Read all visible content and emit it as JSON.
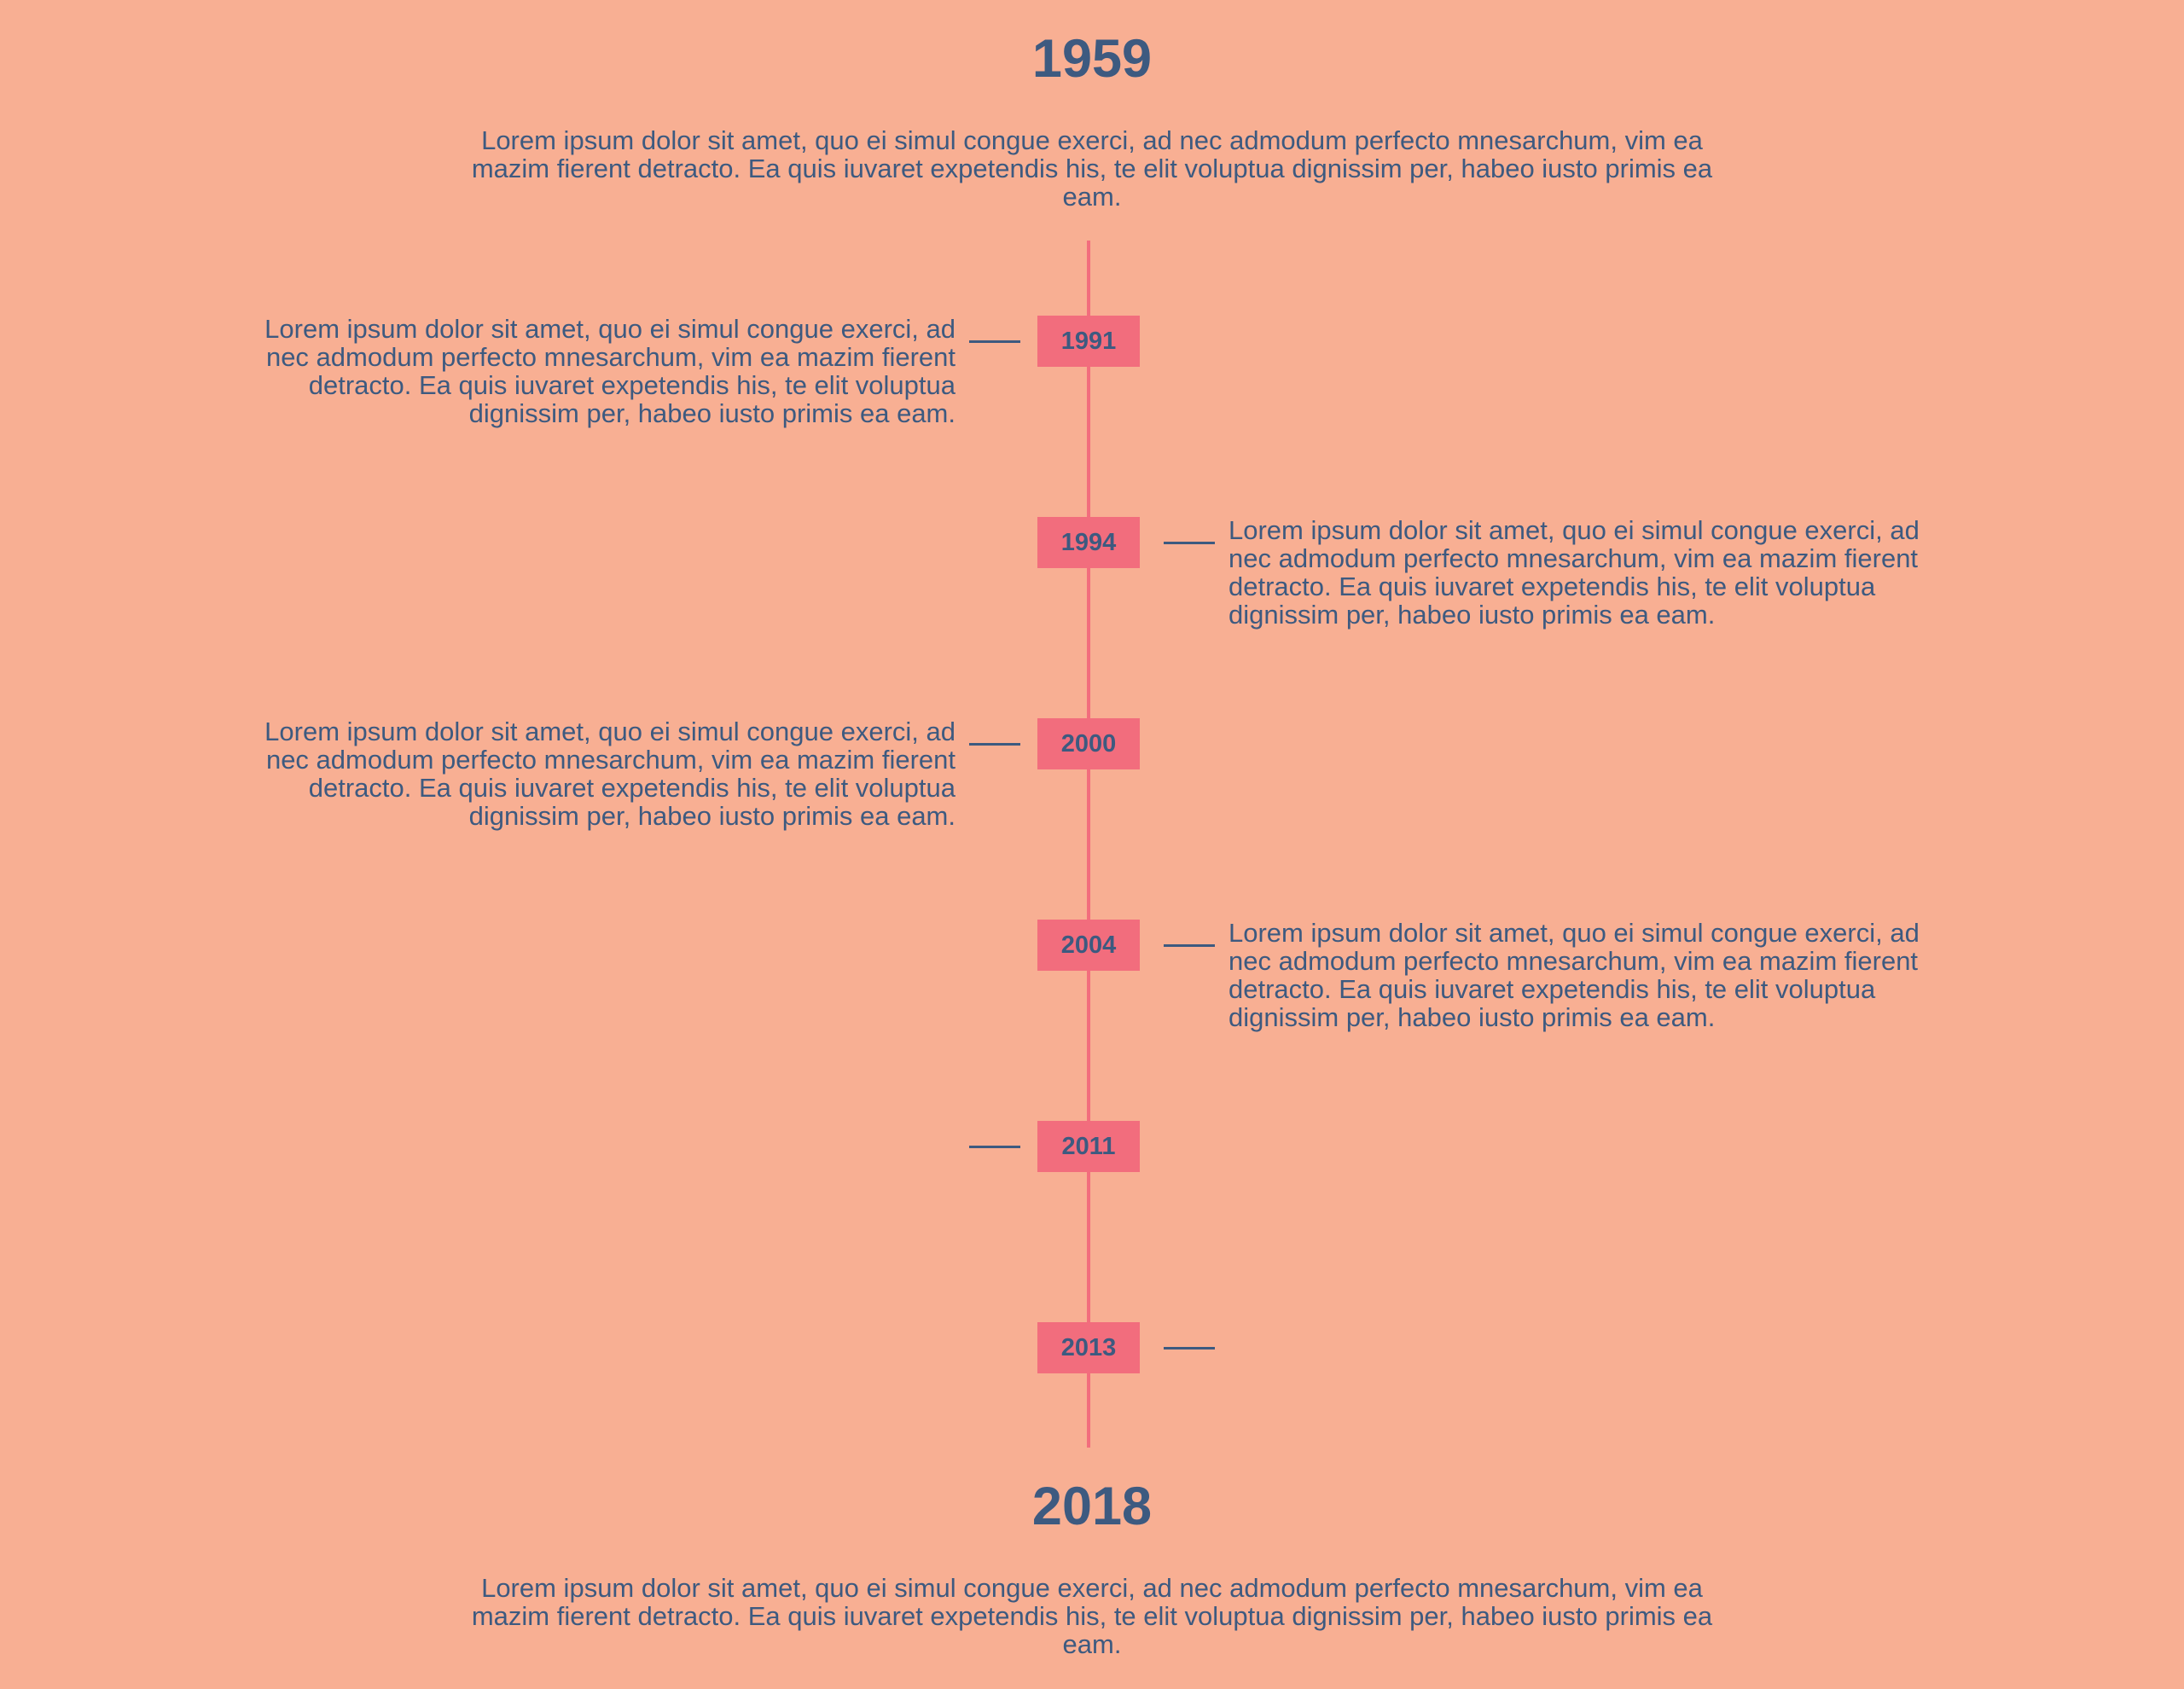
{
  "colors": {
    "background": "#f8af93",
    "accent": "#f26d7d",
    "text": "#3d5a80"
  },
  "start": {
    "year": "1959",
    "text": "Lorem ipsum dolor sit amet, quo ei simul congue exerci, ad nec admodum perfecto mnesarchum, vim ea mazim fierent detracto. Ea quis iuvaret expetendis his, te elit voluptua dignissim per, habeo iusto primis ea eam."
  },
  "events": [
    {
      "year": "1991",
      "side": "left",
      "text": "Lorem ipsum dolor sit amet, quo ei simul congue exerci, ad nec admodum perfecto mnesarchum, vim ea mazim fierent detracto. Ea quis iuvaret expetendis his, te elit voluptua dignissim per, habeo iusto primis ea eam."
    },
    {
      "year": "1994",
      "side": "right",
      "text": "Lorem ipsum dolor sit amet, quo ei simul congue exerci, ad nec admodum perfecto mnesarchum, vim ea mazim fierent detracto. Ea quis iuvaret expetendis his, te elit voluptua dignissim per, habeo iusto primis ea eam."
    },
    {
      "year": "2000",
      "side": "left",
      "text": "Lorem ipsum dolor sit amet, quo ei simul congue exerci, ad nec admodum perfecto mnesarchum, vim ea mazim fierent detracto. Ea quis iuvaret expetendis his, te elit voluptua dignissim per, habeo iusto primis ea eam."
    },
    {
      "year": "2004",
      "side": "right",
      "text": "Lorem ipsum dolor sit amet, quo ei simul congue exerci, ad nec admodum perfecto mnesarchum, vim ea mazim fierent detracto. Ea quis iuvaret expetendis his, te elit voluptua dignissim per, habeo iusto primis ea eam."
    },
    {
      "year": "2011",
      "side": "left",
      "text": ""
    },
    {
      "year": "2013",
      "side": "right",
      "text": ""
    }
  ],
  "end": {
    "year": "2018",
    "text": "Lorem ipsum dolor sit amet, quo ei simul congue exerci, ad nec admodum perfecto mnesarchum, vim ea mazim fierent detracto. Ea quis iuvaret expetendis his, te elit voluptua dignissim per, habeo iusto primis ea eam."
  }
}
